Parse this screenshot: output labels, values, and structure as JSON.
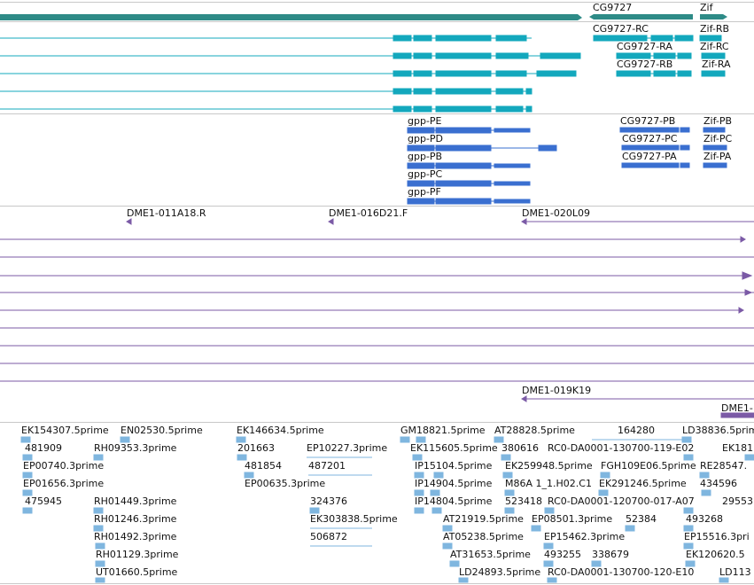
{
  "colors": {
    "gene": "#2e8b87",
    "transcript": "#13a8bd",
    "protein": "#3a6fd0",
    "clone": "#7b5aa6",
    "est": "#7fb6df",
    "divider": "#c8c8c8"
  },
  "genes": {
    "labels": [
      "CG9727",
      "Zif"
    ]
  },
  "transcripts": {
    "labels": [
      "CG9727-RC",
      "Zif-RB",
      "CG9727-RA",
      "Zif-RC",
      "CG9727-RB",
      "Zif-RA"
    ]
  },
  "proteins": {
    "labels": [
      "gpp-PE",
      "gpp-PD",
      "gpp-PB",
      "gpp-PC",
      "gpp-PF",
      "CG9727-PB",
      "Zif-PB",
      "CG9727-PC",
      "Zif-PC",
      "CG9727-PA",
      "Zif-PA"
    ]
  },
  "clones": {
    "labels": [
      "DME1-011A18.R",
      "DME1-016D21.F",
      "DME1-020L09",
      "DME1-019K19",
      "DME1-"
    ]
  },
  "ests": {
    "labels": [
      "EK154307.5prime",
      "EN02530.5prime",
      "EK146634.5prime",
      "GM18821.5prime",
      "AT28828.5prime",
      "164280",
      "LD38836.5prime",
      "481909",
      "RH09353.3prime",
      "201663",
      "EP10227.3prime",
      "EK115605.5prime",
      "380616",
      "RC0-DA0001-130700-119-E02",
      "EK181",
      "EP00740.3prime",
      "481854",
      "487201",
      "IP15104.5prime",
      "EK259948.5prime",
      "FGH109E06.5prime",
      "RE28547.",
      "EP01656.3prime",
      "EP00635.3prime",
      "IP14904.5prime",
      "M86A 1_1.H02.C1",
      "EK291246.5prime",
      "434596",
      "475945",
      "RH01449.3prime",
      "324376",
      "IP14804.5prime",
      "523418",
      "RC0-DA0001-120700-017-A07",
      "29553",
      "RH01246.3prime",
      "EK303838.5prime",
      "AT21919.5prime",
      "EP08501.3prime",
      "52384",
      "493268",
      "RH01492.3prime",
      "506872",
      "AT05238.5prime",
      "EP15462.3prime",
      "EP15516.3pri",
      "RH01129.3prime",
      "AT31653.5prime",
      "493255",
      "338679",
      "EK120620.5",
      "UT01660.5prime",
      "LD24893.5prime",
      "RC0-DA0001-130700-120-E10",
      "LD113"
    ]
  }
}
